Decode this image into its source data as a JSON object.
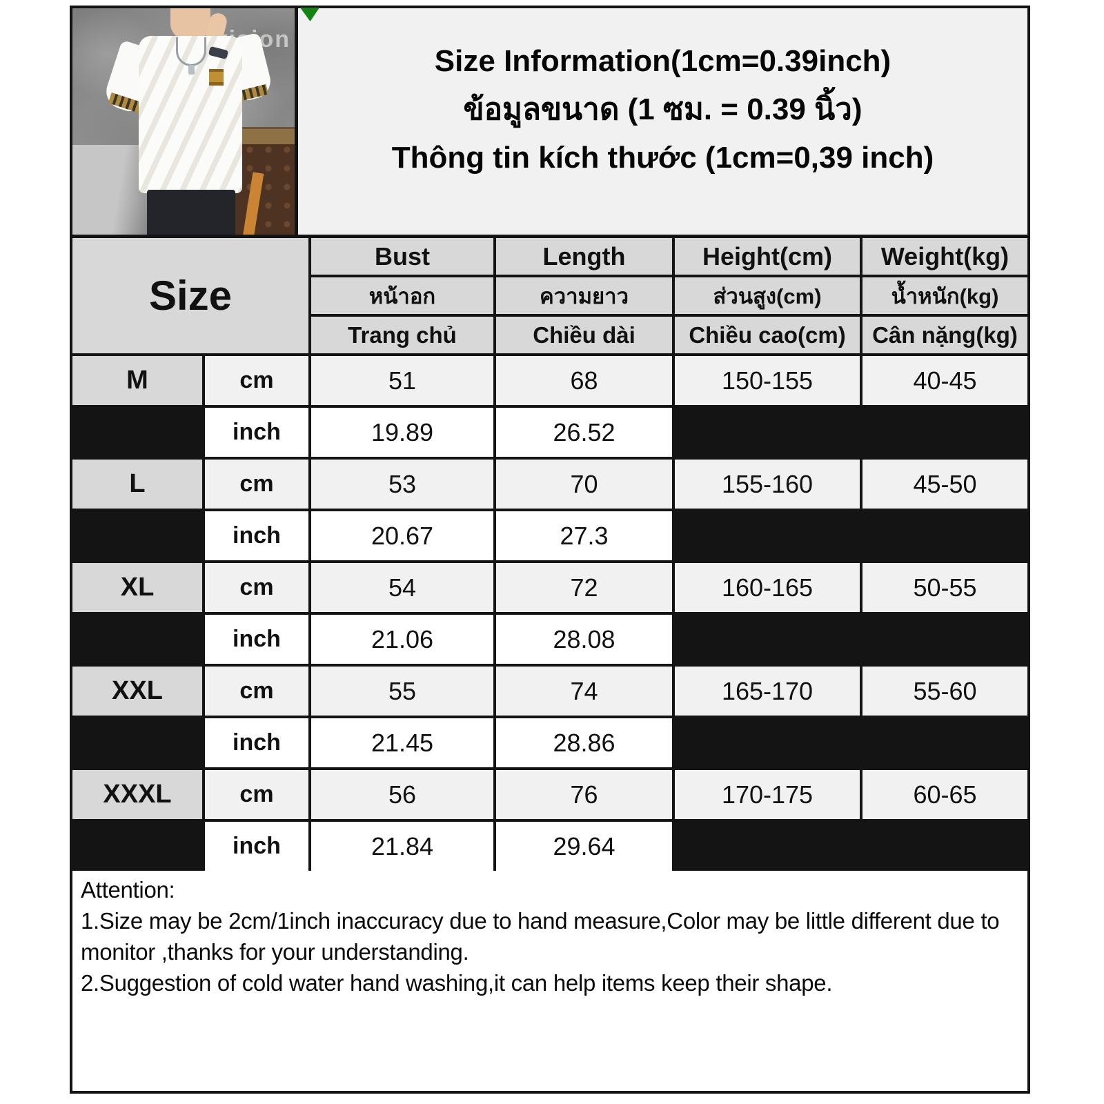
{
  "title": {
    "line_en": "Size Information(1cm=0.39inch)",
    "line_th": "ข้อมูลขนาด (1 ซม. = 0.39 นิ้ว)",
    "line_vi": "Thông tin kích thước (1cm=0,39 inch)"
  },
  "photo": {
    "watermark_small": "vision"
  },
  "table": {
    "size_header": "Size",
    "unit_cm": "cm",
    "unit_inch": "inch",
    "columns": [
      {
        "en": "Bust",
        "th": "หน้าอก",
        "vi": "Trang chủ"
      },
      {
        "en": "Length",
        "th": "ความยาว",
        "vi": "Chiều dài"
      },
      {
        "en": "Height(cm)",
        "th": "ส่วนสูง(cm)",
        "vi": "Chiều cao(cm)"
      },
      {
        "en": "Weight(kg)",
        "th": "น้ำหนัก(kg)",
        "vi": "Cân nặng(kg)"
      }
    ],
    "rows": [
      {
        "size": "M",
        "bust_cm": "51",
        "length_cm": "68",
        "bust_inch": "19.89",
        "length_inch": "26.52",
        "height": "150-155",
        "weight": "40-45"
      },
      {
        "size": "L",
        "bust_cm": "53",
        "length_cm": "70",
        "bust_inch": "20.67",
        "length_inch": "27.3",
        "height": "155-160",
        "weight": "45-50"
      },
      {
        "size": "XL",
        "bust_cm": "54",
        "length_cm": "72",
        "bust_inch": "21.06",
        "length_inch": "28.08",
        "height": "160-165",
        "weight": "50-55"
      },
      {
        "size": "XXL",
        "bust_cm": "55",
        "length_cm": "74",
        "bust_inch": "21.45",
        "length_inch": "28.86",
        "height": "165-170",
        "weight": "55-60"
      },
      {
        "size": "XXXL",
        "bust_cm": "56",
        "length_cm": "76",
        "bust_inch": "21.84",
        "length_inch": "29.64",
        "height": "170-175",
        "weight": "60-65"
      }
    ]
  },
  "attention": {
    "heading": "Attention:",
    "items": [
      "1.Size may be 2cm/1inch inaccuracy due to hand measure,Color may be little different due to monitor ,thanks for your understanding.",
      "2.Suggestion of cold water hand washing,it can help items keep their shape."
    ]
  },
  "colors": {
    "border": "#141414",
    "header_bg": "#d8d8d8",
    "row_cm_bg": "#f1f1f1",
    "row_inch_bg": "#ffffff",
    "panel_bg": "#f1f1f1",
    "flag_green": "#148214"
  }
}
